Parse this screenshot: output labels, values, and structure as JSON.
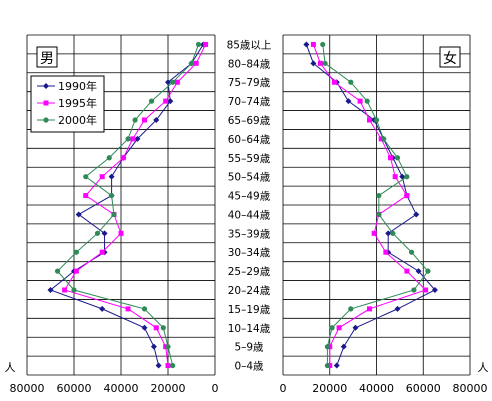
{
  "chart_data": {
    "type": "line",
    "age_groups": [
      "0–4歳",
      "5–9歳",
      "10–14歳",
      "15–19歳",
      "20–24歳",
      "25–29歳",
      "30–34歳",
      "35–39歳",
      "40–44歳",
      "45–49歳",
      "50–54歳",
      "55–59歳",
      "60–64歳",
      "65–69歳",
      "70–74歳",
      "75–79歳",
      "80–84歳",
      "85歳以上"
    ],
    "unit_label": "人",
    "ticks": [
      "0",
      "20000",
      "40000",
      "60000",
      "80000"
    ],
    "tick_values": [
      0,
      20000,
      40000,
      60000,
      80000
    ],
    "xlim": [
      0,
      80000
    ],
    "legend": {
      "placement": "top-left of 男 panel",
      "entries": [
        "1990年",
        "1995年",
        "2000年"
      ]
    },
    "series_meta": [
      {
        "name": "1990年",
        "color": "#1a1a8c",
        "marker": "diamond"
      },
      {
        "name": "1995年",
        "color": "#ff00ff",
        "marker": "square"
      },
      {
        "name": "2000年",
        "color": "#2e8b57",
        "marker": "circle"
      }
    ],
    "panels": [
      {
        "title": "男",
        "direction": "left",
        "series": [
          {
            "name": "1990年",
            "values": [
              24000,
              26000,
              30000,
              48000,
              70000,
              60000,
              47000,
              47000,
              58000,
              44000,
              44000,
              39000,
              33000,
              25000,
              19000,
              20000,
              10000,
              5000
            ]
          },
          {
            "name": "1995年",
            "values": [
              20000,
              21000,
              25000,
              37000,
              64000,
              59000,
              48000,
              40000,
              43000,
              55000,
              48000,
              39000,
              35000,
              30000,
              21000,
              16000,
              8000,
              4000
            ]
          },
          {
            "name": "2000年",
            "values": [
              18000,
              20000,
              22000,
              30000,
              60000,
              67000,
              59000,
              50000,
              43000,
              44000,
              55000,
              45000,
              37000,
              34000,
              27000,
              18000,
              10000,
              7000
            ]
          }
        ]
      },
      {
        "title": "女",
        "direction": "right",
        "series": [
          {
            "name": "1990年",
            "values": [
              23000,
              26000,
              31000,
              49000,
              65000,
              58000,
              45000,
              45000,
              57000,
              53000,
              51000,
              47000,
              43000,
              39000,
              28000,
              23000,
              13000,
              10000
            ]
          },
          {
            "name": "1995年",
            "values": [
              20000,
              20000,
              24000,
              37000,
              61000,
              53000,
              44000,
              39000,
              41000,
              53000,
              48000,
              46000,
              42000,
              37000,
              33000,
              22000,
              16000,
              13000
            ]
          },
          {
            "name": "2000年",
            "values": [
              19000,
              19000,
              21000,
              29000,
              56000,
              62000,
              55000,
              47000,
              41000,
              41000,
              53000,
              49000,
              43000,
              40000,
              36000,
              29000,
              18000,
              17000
            ]
          }
        ]
      }
    ]
  }
}
